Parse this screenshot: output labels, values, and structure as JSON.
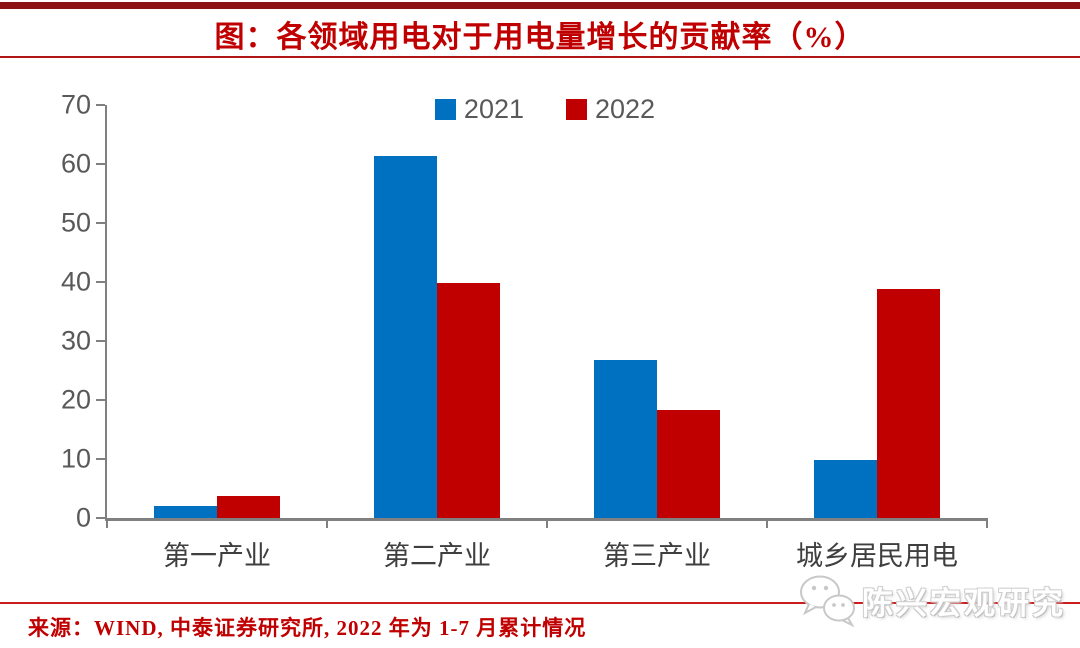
{
  "header": {
    "title": "图：各领域用电对于用电量增长的贡献率（%）"
  },
  "chart_data": {
    "type": "bar",
    "title": "图：各领域用电对于用电量增长的贡献率（%）",
    "categories": [
      "第一产业",
      "第二产业",
      "第三产业",
      "城乡居民用电"
    ],
    "series": [
      {
        "name": "2021",
        "color": "#0070C0",
        "values": [
          2.0,
          61.3,
          26.8,
          9.8
        ]
      },
      {
        "name": "2022",
        "color": "#C00000",
        "values": [
          3.8,
          39.8,
          18.3,
          38.9
        ]
      }
    ],
    "xlabel": "",
    "ylabel": "",
    "ylim": [
      0,
      70
    ],
    "yticks": [
      0,
      10,
      20,
      30,
      40,
      50,
      60,
      70
    ],
    "legend_position": "top-center",
    "grid": false
  },
  "footer": {
    "source": "来源：WIND, 中泰证券研究所, 2022 年为 1-7 月累计情况",
    "watermark": "陈兴宏观研究"
  },
  "colors": {
    "title_red": "#C00000",
    "top_bar": "#8E1414",
    "footer_divider_red": "#C81E1E",
    "axis_gray": "#808080",
    "tick_label_gray": "#595959",
    "bar_2021_blue": "#0070C0",
    "bar_2022_red": "#C00000"
  }
}
